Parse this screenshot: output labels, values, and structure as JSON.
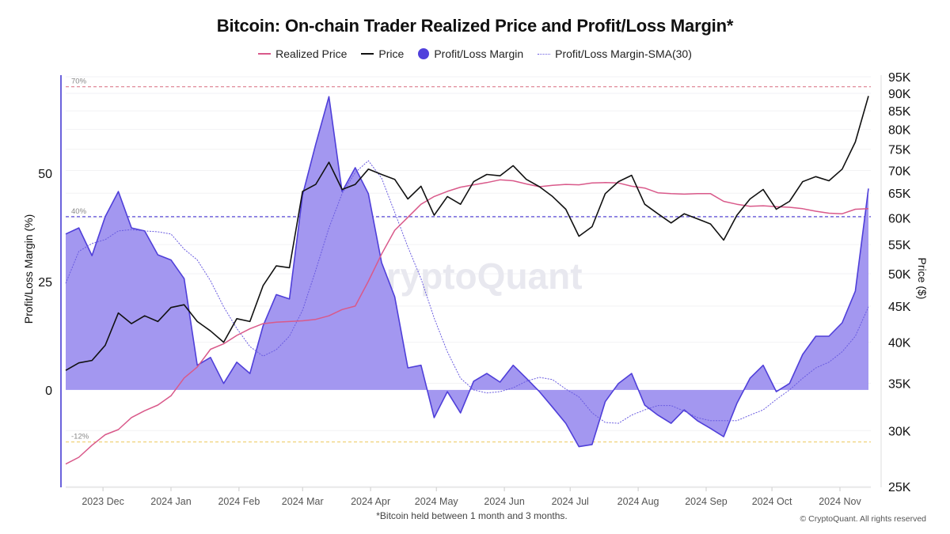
{
  "chart_data": {
    "type": "line",
    "title": "Bitcoin: On-chain Trader Realized Price and Profit/Loss Margin*",
    "footnote": "*Bitcoin held between 1 month and 3 months.",
    "copyright": "© CryptoQuant. All rights reserved",
    "watermark": "CryptoQuant",
    "ylabel_left": "Profit/Loss Margin (%)",
    "ylabel_right": "Price ($)",
    "ylim_left": [
      -22.3,
      72.3
    ],
    "ylim_right": [
      25000,
      95000
    ],
    "right_scale": "log",
    "xlim": [
      "2023-11-14",
      "2024-11-14"
    ],
    "grid": true,
    "legend_position": "top",
    "left_ticks": [
      "50",
      "25",
      "0"
    ],
    "left_tick_values": [
      50,
      25,
      0
    ],
    "right_ticks": [
      "95K",
      "90K",
      "85K",
      "80K",
      "75K",
      "70K",
      "65K",
      "60K",
      "55K",
      "50K",
      "45K",
      "40K",
      "35K",
      "30K",
      "25K"
    ],
    "right_tick_values": [
      95000,
      90000,
      85000,
      80000,
      75000,
      70000,
      65000,
      60000,
      55000,
      50000,
      45000,
      40000,
      35000,
      30000,
      25000
    ],
    "x_ticks": [
      "2023 Dec",
      "2024 Jan",
      "2024 Feb",
      "2024 Mar",
      "2024 Apr",
      "2024 May",
      "2024 Jun",
      "2024 Jul",
      "2024 Aug",
      "2024 Sep",
      "2024 Oct",
      "2024 Nov"
    ],
    "x_tick_dates": [
      "2023-12-01",
      "2024-01-01",
      "2024-02-01",
      "2024-03-01",
      "2024-04-01",
      "2024-05-01",
      "2024-06-01",
      "2024-07-01",
      "2024-08-01",
      "2024-09-01",
      "2024-10-01",
      "2024-11-01"
    ],
    "reference_lines": [
      {
        "label": "70%",
        "value": 70,
        "color": "#e08a9a"
      },
      {
        "label": "40%",
        "value": 40,
        "color": "#5a4ad6"
      },
      {
        "label": "-12%",
        "value": -12,
        "color": "#f0d27a"
      }
    ],
    "x": [
      "2023-11-14",
      "2023-11-20",
      "2023-11-26",
      "2023-12-02",
      "2023-12-08",
      "2023-12-14",
      "2023-12-20",
      "2023-12-26",
      "2024-01-01",
      "2024-01-07",
      "2024-01-13",
      "2024-01-19",
      "2024-01-25",
      "2024-01-31",
      "2024-02-06",
      "2024-02-12",
      "2024-02-18",
      "2024-02-24",
      "2024-03-01",
      "2024-03-07",
      "2024-03-13",
      "2024-03-19",
      "2024-03-25",
      "2024-03-31",
      "2024-04-06",
      "2024-04-12",
      "2024-04-18",
      "2024-04-24",
      "2024-04-30",
      "2024-05-06",
      "2024-05-12",
      "2024-05-18",
      "2024-05-24",
      "2024-05-30",
      "2024-06-05",
      "2024-06-11",
      "2024-06-17",
      "2024-06-23",
      "2024-06-29",
      "2024-07-05",
      "2024-07-11",
      "2024-07-17",
      "2024-07-23",
      "2024-07-29",
      "2024-08-04",
      "2024-08-10",
      "2024-08-16",
      "2024-08-22",
      "2024-08-28",
      "2024-09-03",
      "2024-09-09",
      "2024-09-15",
      "2024-09-21",
      "2024-09-27",
      "2024-10-03",
      "2024-10-09",
      "2024-10-15",
      "2024-10-21",
      "2024-10-27",
      "2024-11-02",
      "2024-11-08",
      "2024-11-14"
    ],
    "series": [
      {
        "name": "Realized Price",
        "axis": "right",
        "color": "#d9598a",
        "style": "line",
        "values": [
          26900,
          27500,
          28600,
          29600,
          30100,
          31300,
          32000,
          32600,
          33600,
          35600,
          36900,
          39100,
          39800,
          40900,
          41800,
          42500,
          42700,
          42800,
          42900,
          43100,
          43600,
          44500,
          45000,
          48800,
          53300,
          57600,
          60100,
          62700,
          64300,
          65400,
          66300,
          66800,
          67300,
          67900,
          67700,
          67000,
          66400,
          66700,
          66900,
          66800,
          67200,
          67300,
          67200,
          66500,
          66100,
          65100,
          64900,
          64800,
          64900,
          64900,
          63300,
          62700,
          62300,
          62400,
          62200,
          62100,
          61800,
          61300,
          60900,
          60800,
          61700,
          61800
        ]
      },
      {
        "name": "Price",
        "axis": "right",
        "color": "#111111",
        "style": "line",
        "values": [
          36500,
          37400,
          37700,
          39600,
          44000,
          42500,
          43600,
          42800,
          44800,
          45200,
          42800,
          41500,
          40000,
          43200,
          42800,
          48100,
          51300,
          51000,
          65400,
          66900,
          71900,
          65800,
          66900,
          70300,
          69100,
          68000,
          63800,
          66500,
          60500,
          64300,
          62700,
          67500,
          69100,
          68800,
          71100,
          68000,
          66400,
          64300,
          61700,
          56500,
          58300,
          64900,
          67500,
          68900,
          62700,
          60800,
          59000,
          60800,
          59800,
          58800,
          55800,
          60500,
          63800,
          65800,
          61700,
          63300,
          67500,
          68600,
          67700,
          70300,
          76800,
          89200
        ]
      },
      {
        "name": "Profit/Loss Margin",
        "axis": "left",
        "color": "#4f3fd9",
        "fill": "#a397f0",
        "style": "area",
        "values": [
          36,
          37.4,
          31,
          40,
          45.8,
          37.4,
          36.7,
          31.2,
          30,
          25.7,
          5.7,
          7.5,
          1.5,
          6.4,
          3.8,
          14.8,
          22,
          21,
          45,
          56.7,
          67.7,
          45.8,
          51.3,
          45.3,
          29.4,
          21.5,
          5.1,
          5.7,
          -6.4,
          -0.4,
          -5.3,
          2,
          3.8,
          1.8,
          5.7,
          2.7,
          -0.4,
          -4,
          -7.7,
          -13.1,
          -12.6,
          -2.7,
          1.5,
          3.8,
          -3.5,
          -5.8,
          -7.7,
          -4.6,
          -7.1,
          -8.9,
          -10.8,
          -3.1,
          2.7,
          5.7,
          -0.4,
          1.5,
          8.2,
          12.4,
          12.4,
          15.5,
          22.8,
          46.5
        ]
      },
      {
        "name": "Profit/Loss Margin-SMA(30)",
        "axis": "left",
        "color": "#6a5ce0",
        "style": "dotted",
        "values": [
          24.6,
          32,
          33.8,
          34.7,
          36.7,
          37,
          36.7,
          36.5,
          36,
          32.5,
          30,
          25.2,
          19.2,
          14.2,
          10,
          7.8,
          9.3,
          12.4,
          18.4,
          27.6,
          37.4,
          45.3,
          50.2,
          52.9,
          48.9,
          41,
          33,
          25.7,
          16.6,
          8.8,
          2.7,
          0,
          -0.7,
          -0.4,
          0.5,
          2,
          2.9,
          2.4,
          0.2,
          -1.6,
          -5.3,
          -7.5,
          -7.7,
          -5.8,
          -4.6,
          -3.6,
          -3.6,
          -4.9,
          -6.4,
          -7.1,
          -7.1,
          -7.1,
          -5.8,
          -4.6,
          -2.2,
          0,
          2.7,
          5.1,
          6.4,
          8.8,
          12.4,
          19.2
        ]
      }
    ]
  }
}
